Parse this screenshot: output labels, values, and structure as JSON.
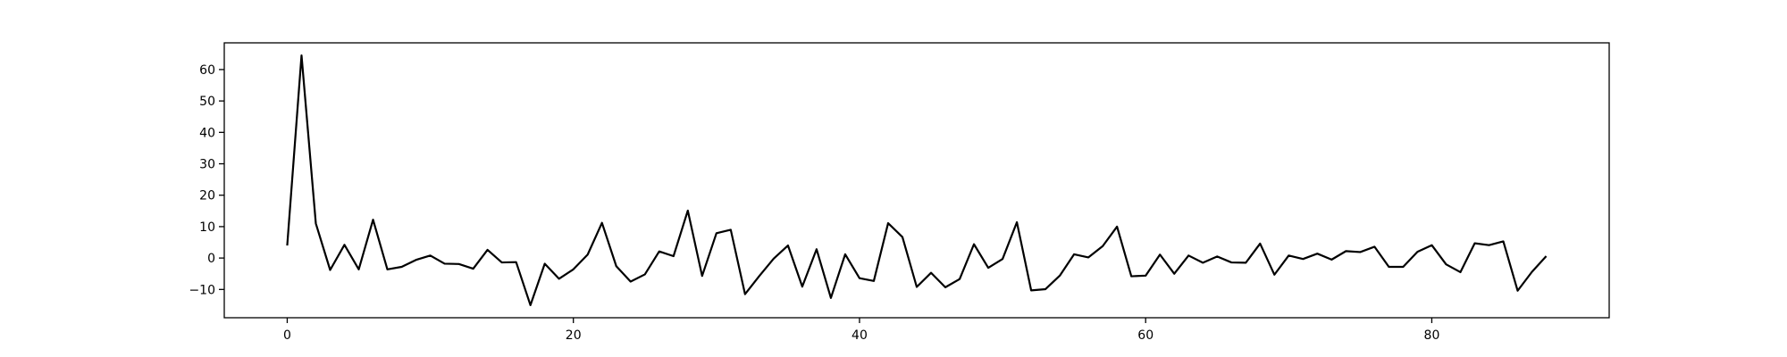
{
  "chart_data": {
    "type": "line",
    "title": "",
    "xlabel": "",
    "ylabel": "",
    "xlim": [
      -4.4,
      92.4
    ],
    "ylim": [
      -19.0,
      68.5
    ],
    "x_ticks": [
      0,
      20,
      40,
      60,
      80
    ],
    "y_ticks": [
      -10,
      0,
      10,
      20,
      30,
      40,
      50,
      60
    ],
    "x_tick_labels": [
      "0",
      "20",
      "40",
      "60",
      "80"
    ],
    "y_tick_labels": [
      "−10",
      "0",
      "10",
      "20",
      "30",
      "40",
      "50",
      "60"
    ],
    "grid": false,
    "series": [
      {
        "color": "#000000",
        "x": [
          0,
          1,
          2,
          3,
          4,
          5,
          6,
          7,
          8,
          9,
          10,
          11,
          12,
          13,
          14,
          15,
          16,
          17,
          18,
          19,
          20,
          21,
          22,
          23,
          24,
          25,
          26,
          27,
          28,
          29,
          30,
          31,
          32,
          33,
          34,
          35,
          36,
          37,
          38,
          39,
          40,
          41,
          42,
          43,
          44,
          45,
          46,
          47,
          48,
          49,
          50,
          51,
          52,
          53,
          54,
          55,
          56,
          57,
          58,
          59,
          60,
          61,
          62,
          63,
          64,
          65,
          66,
          67,
          68,
          69,
          70,
          71,
          72,
          73,
          74,
          75,
          76,
          77,
          78,
          79,
          80,
          81,
          82,
          83,
          84,
          85,
          86,
          87,
          88
        ],
        "y": [
          4,
          64.5,
          11,
          -3.8,
          4.2,
          -3.6,
          12.2,
          -3.6,
          -2.8,
          -0.6,
          0.8,
          -1.8,
          -1.9,
          -3.4,
          2.6,
          -1.4,
          -1.3,
          -15,
          -1.8,
          -6.6,
          -3.6,
          1.1,
          11.2,
          -2.6,
          -7.5,
          -5.2,
          2.1,
          0.6,
          15.1,
          -5.7,
          7.9,
          9,
          -11.5,
          -5.7,
          -0.2,
          4,
          -9.1,
          2.8,
          -12.7,
          1.2,
          -6.4,
          -7.3,
          11.1,
          6.7,
          -9.2,
          -4.7,
          -9.3,
          -6.7,
          4.4,
          -3.1,
          -0.3,
          11.4,
          -10.3,
          -9.9,
          -5.6,
          1.2,
          0.2,
          3.8,
          10,
          -5.8,
          -5.6,
          1.1,
          -5,
          0.8,
          -1.5,
          0.5,
          -1.4,
          -1.5,
          4.6,
          -5.3,
          0.8,
          -0.3,
          1.4,
          -0.5,
          2.2,
          1.9,
          3.6,
          -2.8,
          -2.8,
          2,
          4.1,
          -2,
          -4.5,
          4.7,
          4.1,
          5.3,
          -10.4,
          -4.4,
          0.6
        ]
      }
    ]
  }
}
